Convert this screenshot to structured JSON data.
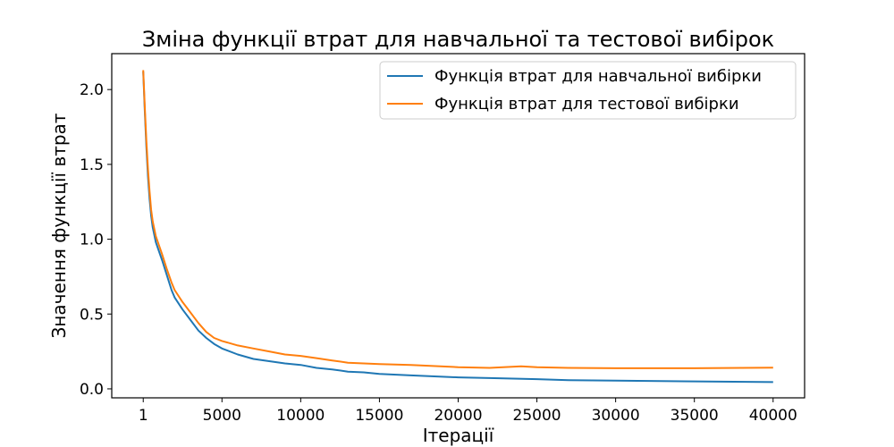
{
  "chart_data": {
    "type": "line",
    "title": "Зміна функції втрат для навчальної та тестової вибірок",
    "xlabel": "Ітерації",
    "ylabel": "Значення функції втрат",
    "xlim": [
      -1999,
      42000
    ],
    "ylim": [
      -0.06,
      2.24
    ],
    "grid": false,
    "legend_position": "top-right",
    "x_ticks": [
      {
        "value": 1,
        "label": "1"
      },
      {
        "value": 5000,
        "label": "5000"
      },
      {
        "value": 10000,
        "label": "10000"
      },
      {
        "value": 15000,
        "label": "15000"
      },
      {
        "value": 20000,
        "label": "20000"
      },
      {
        "value": 25000,
        "label": "25000"
      },
      {
        "value": 30000,
        "label": "30000"
      },
      {
        "value": 35000,
        "label": "35000"
      },
      {
        "value": 40000,
        "label": "40000"
      }
    ],
    "y_ticks": [
      {
        "value": 0.0,
        "label": "0.0"
      },
      {
        "value": 0.5,
        "label": "0.5"
      },
      {
        "value": 1.0,
        "label": "1.0"
      },
      {
        "value": 1.5,
        "label": "1.5"
      },
      {
        "value": 2.0,
        "label": "2.0"
      }
    ],
    "series": [
      {
        "name": "Функція втрат для навчальної вибірки",
        "color": "#1f77b4",
        "x": [
          1,
          100,
          200,
          300,
          400,
          500,
          600,
          800,
          1000,
          1200,
          1500,
          1800,
          2000,
          2500,
          3000,
          3500,
          4000,
          4500,
          5000,
          6000,
          7000,
          8000,
          9000,
          10000,
          11000,
          12000,
          13000,
          14000,
          15000,
          17000,
          20000,
          22000,
          25000,
          27000,
          30000,
          35000,
          40000
        ],
        "y": [
          2.12,
          1.85,
          1.62,
          1.42,
          1.27,
          1.16,
          1.08,
          0.98,
          0.92,
          0.86,
          0.76,
          0.66,
          0.61,
          0.53,
          0.46,
          0.39,
          0.34,
          0.3,
          0.27,
          0.23,
          0.2,
          0.185,
          0.17,
          0.16,
          0.14,
          0.13,
          0.115,
          0.11,
          0.1,
          0.09,
          0.077,
          0.072,
          0.065,
          0.058,
          0.055,
          0.05,
          0.045
        ]
      },
      {
        "name": "Функція втрат для тестової вибірки",
        "color": "#ff7f0e",
        "x": [
          1,
          100,
          200,
          300,
          400,
          500,
          600,
          800,
          1000,
          1200,
          1500,
          1800,
          2000,
          2500,
          3000,
          3500,
          4000,
          4500,
          5000,
          6000,
          7000,
          8000,
          9000,
          10000,
          11000,
          12000,
          13000,
          14000,
          15000,
          17000,
          20000,
          22000,
          24000,
          25000,
          27000,
          30000,
          35000,
          40000
        ],
        "y": [
          2.13,
          1.88,
          1.66,
          1.47,
          1.32,
          1.2,
          1.12,
          1.02,
          0.96,
          0.9,
          0.8,
          0.71,
          0.66,
          0.58,
          0.51,
          0.44,
          0.38,
          0.34,
          0.32,
          0.29,
          0.27,
          0.25,
          0.23,
          0.22,
          0.205,
          0.19,
          0.175,
          0.17,
          0.165,
          0.16,
          0.145,
          0.14,
          0.15,
          0.145,
          0.14,
          0.138,
          0.138,
          0.142
        ]
      }
    ]
  }
}
